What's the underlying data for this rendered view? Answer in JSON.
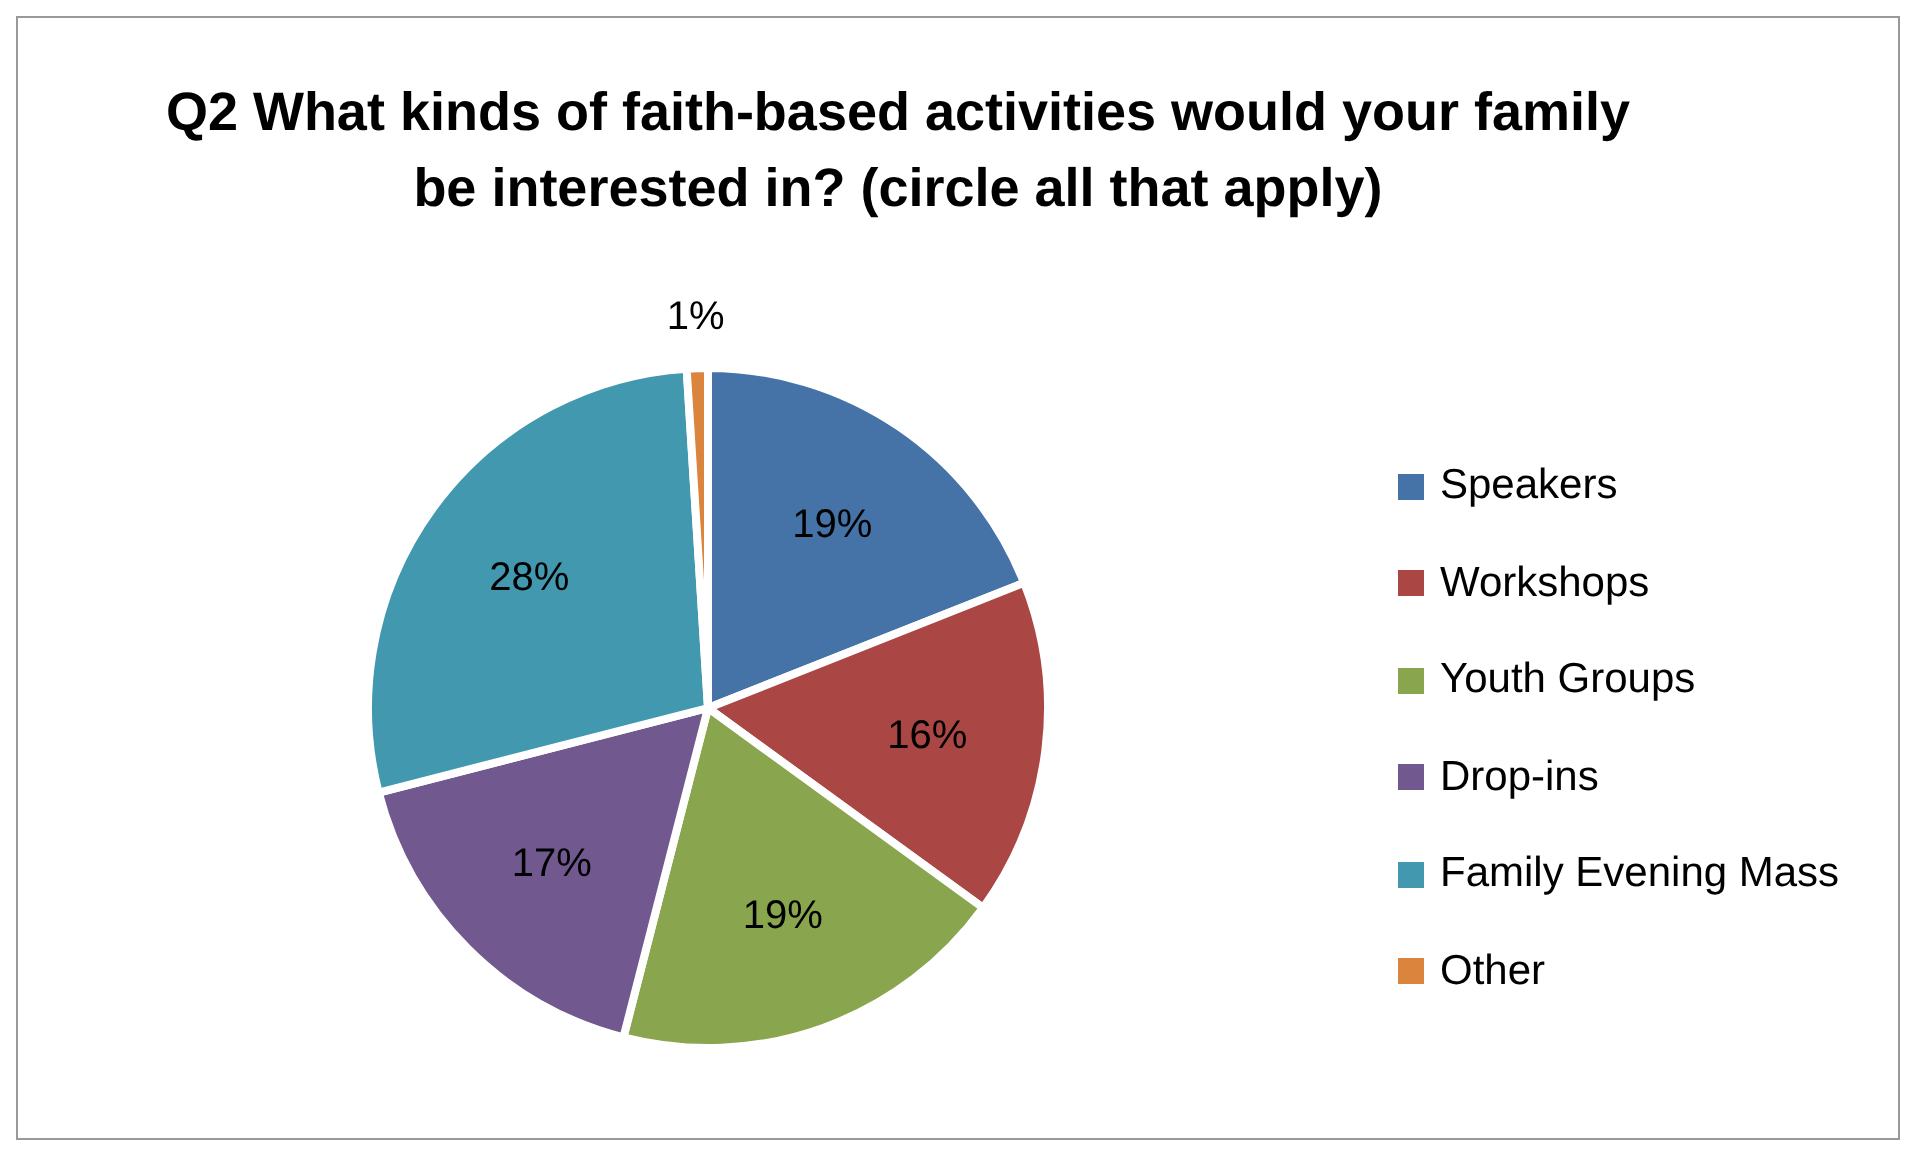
{
  "chart_data": {
    "type": "pie",
    "title": "Q2 What kinds of faith-based activities would your family be interested in? (circle all that apply)",
    "categories": [
      "Speakers",
      "Workshops",
      "Youth Groups",
      "Drop-ins",
      "Family Evening Mass",
      "Other"
    ],
    "values": [
      19,
      16,
      19,
      17,
      28,
      1
    ],
    "value_labels": [
      "19%",
      "16%",
      "19%",
      "17%",
      "28%",
      "1%"
    ],
    "colors": [
      "#4572a7",
      "#aa4643",
      "#89a54e",
      "#71588f",
      "#4198af",
      "#db843d"
    ],
    "legend": "right"
  }
}
